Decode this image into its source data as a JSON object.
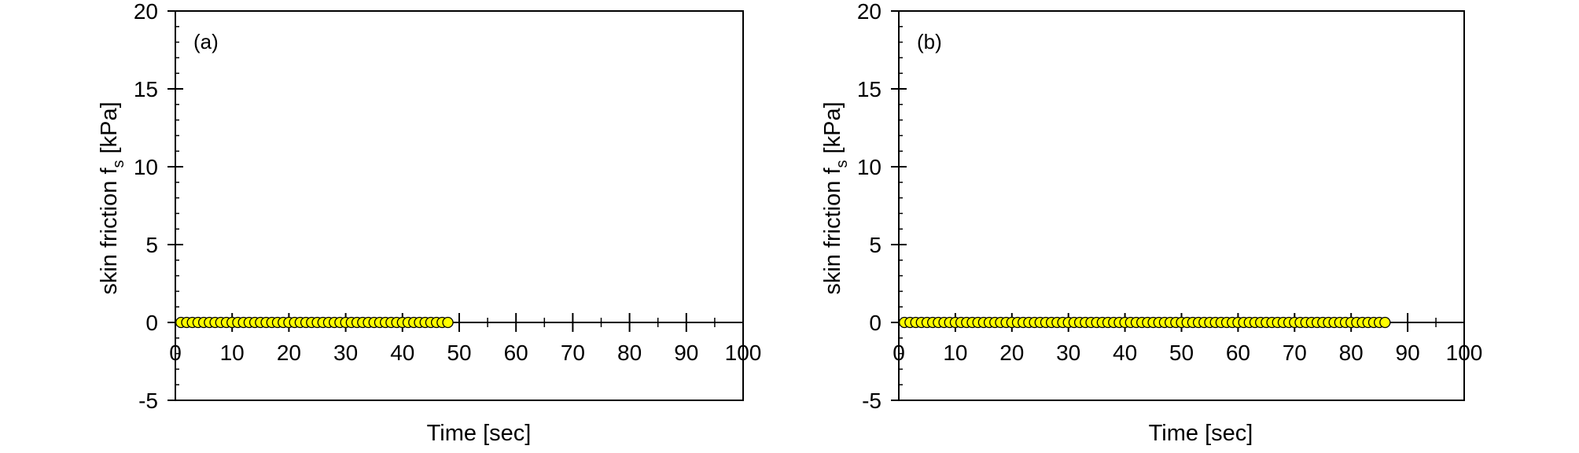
{
  "chart_data": [
    {
      "type": "scatter",
      "panel_label": "(a)",
      "xlabel": "Time [sec]",
      "ylabel": "skin friction f",
      "ylabel_subscript": "s",
      "ylabel_unit": " [kPa]",
      "xlim": [
        0,
        100
      ],
      "ylim": [
        -5,
        20
      ],
      "xticks": [
        0,
        10,
        20,
        30,
        40,
        50,
        60,
        70,
        80,
        90,
        100
      ],
      "yticks": [
        -5,
        0,
        5,
        10,
        15,
        20
      ],
      "grid": false,
      "marker_color": "#ffff00",
      "series": [
        {
          "x": [
            1,
            2,
            3,
            4,
            5,
            6,
            7,
            8,
            9,
            10,
            11,
            12,
            13,
            14,
            15,
            16,
            17,
            18,
            19,
            20,
            21,
            22,
            23,
            24,
            25,
            26,
            27,
            28,
            29,
            30,
            31,
            32,
            33,
            34,
            35,
            36,
            37,
            38,
            39,
            40,
            41,
            42,
            43,
            44,
            45,
            46,
            47,
            48
          ],
          "y": [
            0,
            0,
            0,
            0,
            0,
            0,
            0,
            0,
            0,
            0,
            0,
            0,
            0,
            0,
            0,
            0,
            0,
            0,
            0,
            0,
            0,
            0,
            0,
            0,
            0,
            0,
            0,
            0,
            0,
            0,
            0,
            0,
            0,
            0,
            0,
            0,
            0,
            0,
            0,
            0,
            0,
            0,
            0,
            0,
            0,
            0,
            0,
            0
          ]
        }
      ]
    },
    {
      "type": "scatter",
      "panel_label": "(b)",
      "xlabel": "Time [sec]",
      "ylabel": "skin friction f",
      "ylabel_subscript": "s",
      "ylabel_unit": " [kPa]",
      "xlim": [
        0,
        100
      ],
      "ylim": [
        -5,
        20
      ],
      "xticks": [
        0,
        10,
        20,
        30,
        40,
        50,
        60,
        70,
        80,
        90,
        100
      ],
      "yticks": [
        -5,
        0,
        5,
        10,
        15,
        20
      ],
      "grid": false,
      "marker_color": "#ffff00",
      "series": [
        {
          "x": [
            1,
            2,
            3,
            4,
            5,
            6,
            7,
            8,
            9,
            10,
            11,
            12,
            13,
            14,
            15,
            16,
            17,
            18,
            19,
            20,
            21,
            22,
            23,
            24,
            25,
            26,
            27,
            28,
            29,
            30,
            31,
            32,
            33,
            34,
            35,
            36,
            37,
            38,
            39,
            40,
            41,
            42,
            43,
            44,
            45,
            46,
            47,
            48,
            49,
            50,
            51,
            52,
            53,
            54,
            55,
            56,
            57,
            58,
            59,
            60,
            61,
            62,
            63,
            64,
            65,
            66,
            67,
            68,
            69,
            70,
            71,
            72,
            73,
            74,
            75,
            76,
            77,
            78,
            79,
            80,
            81,
            82,
            83,
            84,
            85,
            86
          ],
          "y": [
            0,
            0,
            0,
            0,
            0,
            0,
            0,
            0,
            0,
            0,
            0,
            0,
            0,
            0,
            0,
            0,
            0,
            0,
            0,
            0,
            0,
            0,
            0,
            0,
            0,
            0,
            0,
            0,
            0,
            0,
            0,
            0,
            0,
            0,
            0,
            0,
            0,
            0,
            0,
            0,
            0,
            0,
            0,
            0,
            0,
            0,
            0,
            0,
            0,
            0,
            0,
            0,
            0,
            0,
            0,
            0,
            0,
            0,
            0,
            0,
            0,
            0,
            0,
            0,
            0,
            0,
            0,
            0,
            0,
            0,
            0,
            0,
            0,
            0,
            0,
            0,
            0,
            0,
            0,
            0,
            0,
            0,
            0,
            0,
            0,
            0
          ]
        }
      ]
    }
  ]
}
